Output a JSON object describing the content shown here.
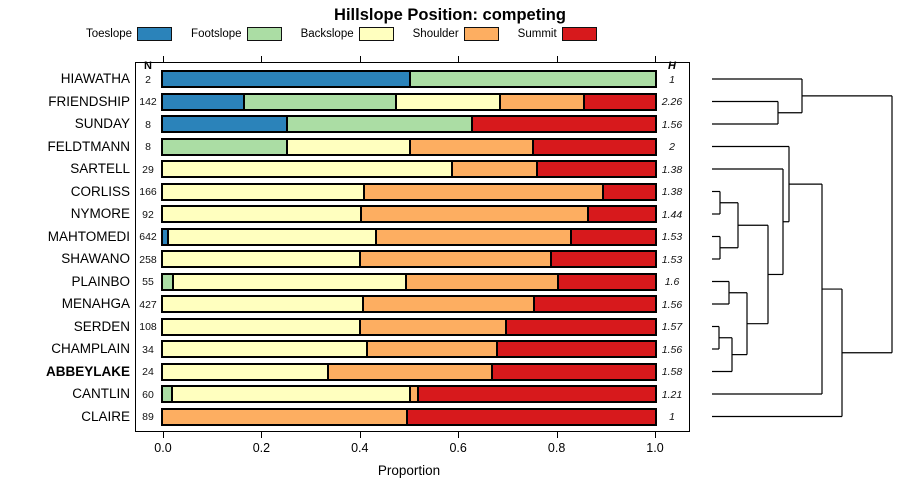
{
  "title": "Hillslope Position: competing",
  "columns": {
    "n_header": "N",
    "h_header": "H"
  },
  "axis": {
    "label": "Proportion",
    "tick_labels": [
      "0.0",
      "0.2",
      "0.4",
      "0.6",
      "0.8",
      "1.0"
    ],
    "tick_values": [
      0,
      0.2,
      0.4,
      0.6,
      0.8,
      1.0
    ],
    "range": [
      0,
      1
    ]
  },
  "legend": {
    "items": [
      {
        "label": "Toeslope",
        "color": "#2B83BA"
      },
      {
        "label": "Footslope",
        "color": "#ABDDA4"
      },
      {
        "label": "Backslope",
        "color": "#FFFFBF"
      },
      {
        "label": "Shoulder",
        "color": "#FDAE61"
      },
      {
        "label": "Summit",
        "color": "#D7191C"
      }
    ]
  },
  "chart_data": {
    "type": "stacked-bar-horizontal",
    "title": "Hillslope Position: competing",
    "xlabel": "Proportion",
    "xlim": [
      0,
      1
    ],
    "categories": [
      "Toeslope",
      "Footslope",
      "Backslope",
      "Shoulder",
      "Summit"
    ],
    "colors": [
      "#2B83BA",
      "#ABDDA4",
      "#FFFFBF",
      "#FDAE61",
      "#D7191C"
    ],
    "rows": [
      {
        "label": "HIAWATHA",
        "n": "2",
        "h": "1",
        "bold": false,
        "values": [
          0.5,
          0.5,
          0,
          0,
          0
        ]
      },
      {
        "label": "FRIENDSHIP",
        "n": "142",
        "h": "2.26",
        "bold": false,
        "values": [
          0.162,
          0.31,
          0.21,
          0.172,
          0.146
        ]
      },
      {
        "label": "SUNDAY",
        "n": "8",
        "h": "1.56",
        "bold": false,
        "values": [
          0.25,
          0.375,
          0,
          0,
          0.375
        ]
      },
      {
        "label": "FELDTMANN",
        "n": "8",
        "h": "2",
        "bold": false,
        "values": [
          0,
          0.25,
          0.25,
          0.25,
          0.25
        ]
      },
      {
        "label": "SARTELL",
        "n": "29",
        "h": "1.38",
        "bold": false,
        "values": [
          0,
          0,
          0.586,
          0.172,
          0.242
        ]
      },
      {
        "label": "CORLISS",
        "n": "166",
        "h": "1.38",
        "bold": false,
        "values": [
          0,
          0,
          0.407,
          0.485,
          0.108
        ]
      },
      {
        "label": "NYMORE",
        "n": "92",
        "h": "1.44",
        "bold": false,
        "values": [
          0,
          0,
          0.4,
          0.462,
          0.138
        ]
      },
      {
        "label": "MAHTOMEDI",
        "n": "642",
        "h": "1.53",
        "bold": false,
        "values": [
          0.008,
          0,
          0.423,
          0.396,
          0.173
        ]
      },
      {
        "label": "SHAWANO",
        "n": "258",
        "h": "1.53",
        "bold": false,
        "values": [
          0,
          0,
          0.398,
          0.389,
          0.213
        ]
      },
      {
        "label": "PLAINBO",
        "n": "55",
        "h": "1.6",
        "bold": false,
        "values": [
          0,
          0.018,
          0.474,
          0.308,
          0.2
        ]
      },
      {
        "label": "MENAHGA",
        "n": "427",
        "h": "1.56",
        "bold": false,
        "values": [
          0,
          0,
          0.405,
          0.347,
          0.248
        ]
      },
      {
        "label": "SERDEN",
        "n": "108",
        "h": "1.57",
        "bold": false,
        "values": [
          0,
          0,
          0.398,
          0.297,
          0.305
        ]
      },
      {
        "label": "CHAMPLAIN",
        "n": "34",
        "h": "1.56",
        "bold": false,
        "values": [
          0,
          0,
          0.412,
          0.265,
          0.323
        ]
      },
      {
        "label": "ABBEYLAKE",
        "n": "24",
        "h": "1.58",
        "bold": true,
        "values": [
          0,
          0,
          0.333,
          0.333,
          0.334
        ]
      },
      {
        "label": "CANTLIN",
        "n": "60",
        "h": "1.21",
        "bold": false,
        "values": [
          0,
          0.017,
          0.483,
          0.017,
          0.483
        ]
      },
      {
        "label": "CLAIRE",
        "n": "89",
        "h": "1",
        "bold": false,
        "values": [
          0,
          0,
          0,
          0.494,
          0.506
        ]
      }
    ],
    "dendrogram": {
      "leaf_x": 712,
      "merges": [
        [
          "L1",
          "L2",
          778
        ],
        [
          "L0",
          "M0",
          802
        ],
        [
          "L5",
          "L6",
          720
        ],
        [
          "L7",
          "L8",
          720
        ],
        [
          "M2",
          "M3",
          738
        ],
        [
          "L9",
          "L10",
          729
        ],
        [
          "L11",
          "L12",
          719
        ],
        [
          "M6",
          "L13",
          732
        ],
        [
          "M5",
          "M7",
          747
        ],
        [
          "M4",
          "M8",
          768
        ],
        [
          "L4",
          "M9",
          783
        ],
        [
          "L3",
          "M10",
          789
        ],
        [
          "M11",
          "L14",
          822
        ],
        [
          "M12",
          "L15",
          842
        ],
        [
          "M1",
          "M13",
          892
        ]
      ]
    }
  }
}
